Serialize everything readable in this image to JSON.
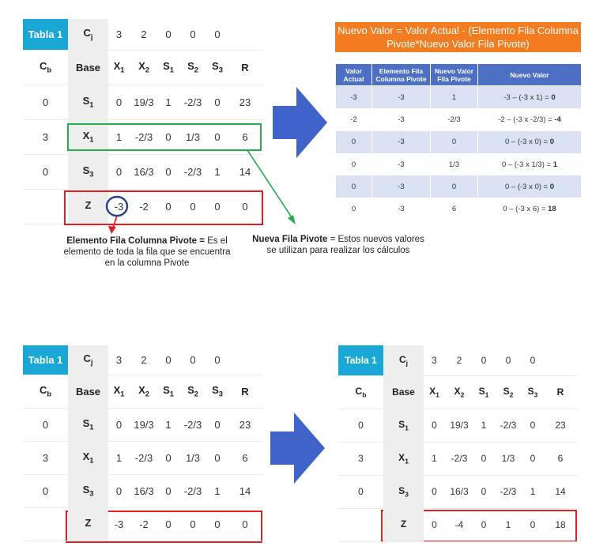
{
  "colors": {
    "corner": "#1aa7d6",
    "highlight_red": "#e02020",
    "highlight_green": "#22b04b",
    "arrow_blue": "#3f63c8",
    "title_orange": "#f47c20",
    "circle_blue": "#2a3c8c"
  },
  "tables": {
    "t1": {
      "corner": "Tabla 1",
      "cj_label": "C",
      "cj_sub": "j",
      "cj_values": [
        "3",
        "2",
        "0",
        "0",
        "0",
        ""
      ],
      "cb_label": "C",
      "cb_sub": "b",
      "base_label": "Base",
      "r_label": "R",
      "vars": [
        {
          "n": "X",
          "s": "1"
        },
        {
          "n": "X",
          "s": "2"
        },
        {
          "n": "S",
          "s": "1"
        },
        {
          "n": "S",
          "s": "2"
        },
        {
          "n": "S",
          "s": "3"
        }
      ],
      "rows": [
        {
          "cb": "0",
          "base": "S",
          "base_sub": "1",
          "v": [
            "0",
            "19/3",
            "1",
            "-2/3",
            "0",
            "23"
          ]
        },
        {
          "cb": "3",
          "base": "X",
          "base_sub": "1",
          "v": [
            "1",
            "-2/3",
            "0",
            "1/3",
            "0",
            "6"
          ]
        },
        {
          "cb": "0",
          "base": "S",
          "base_sub": "3",
          "v": [
            "0",
            "16/3",
            "0",
            "-2/3",
            "1",
            "14"
          ]
        },
        {
          "cb": "",
          "base": "Z",
          "base_sub": "",
          "v": [
            "-3",
            "-2",
            "0",
            "0",
            "0",
            "0"
          ]
        }
      ]
    },
    "t3": {
      "rows": [
        {
          "cb": "0",
          "base": "S",
          "base_sub": "1",
          "v": [
            "0",
            "19/3",
            "1",
            "-2/3",
            "0",
            "23"
          ]
        },
        {
          "cb": "3",
          "base": "X",
          "base_sub": "1",
          "v": [
            "1",
            "-2/3",
            "0",
            "1/3",
            "0",
            "6"
          ]
        },
        {
          "cb": "0",
          "base": "S",
          "base_sub": "3",
          "v": [
            "0",
            "16/3",
            "0",
            "-2/3",
            "1",
            "14"
          ]
        },
        {
          "cb": "",
          "base": "Z",
          "base_sub": "",
          "v": [
            "-3",
            "-2",
            "0",
            "0",
            "0",
            "0"
          ]
        }
      ]
    },
    "t4": {
      "rows": [
        {
          "cb": "0",
          "base": "S",
          "base_sub": "1",
          "v": [
            "0",
            "19/3",
            "1",
            "-2/3",
            "0",
            "23"
          ]
        },
        {
          "cb": "3",
          "base": "X",
          "base_sub": "1",
          "v": [
            "1",
            "-2/3",
            "0",
            "1/3",
            "0",
            "6"
          ]
        },
        {
          "cb": "0",
          "base": "S",
          "base_sub": "3",
          "v": [
            "0",
            "16/3",
            "0",
            "-2/3",
            "1",
            "14"
          ]
        },
        {
          "cb": "",
          "base": "Z",
          "base_sub": "",
          "v": [
            "0",
            "-4",
            "0",
            "1",
            "0",
            "18"
          ]
        }
      ]
    }
  },
  "formula": {
    "title": "Nuevo Valor = Valor Actual - (Elemento Fila Columna Pivote*Nuevo Valor Fila Pivote)",
    "headers": [
      "Valor Actual",
      "Elemento Fila Columna Pivote",
      "Nuevo Valor Fila Pivote",
      "Nuevo Valor"
    ],
    "rows": [
      {
        "actual": "-3",
        "elem": "-3",
        "nuevo_fila": "1",
        "expr": "-3 – (-3 x 1) = ",
        "result": "0"
      },
      {
        "actual": "-2",
        "elem": "-3",
        "nuevo_fila": "-2/3",
        "expr": "-2 – (-3 x -2/3) = ",
        "result": "-4"
      },
      {
        "actual": "0",
        "elem": "-3",
        "nuevo_fila": "0",
        "expr": "0 – (-3 x 0) = ",
        "result": "0"
      },
      {
        "actual": "0",
        "elem": "-3",
        "nuevo_fila": "1/3",
        "expr": "0 – (-3 x 1/3) = ",
        "result": "1"
      },
      {
        "actual": "0",
        "elem": "-3",
        "nuevo_fila": "0",
        "expr": "0 – (-3 x 0) = ",
        "result": "0"
      },
      {
        "actual": "0",
        "elem": "-3",
        "nuevo_fila": "6",
        "expr": "0 – (-3 x 6) = ",
        "result": "18"
      }
    ]
  },
  "notes": {
    "pivot_bold": "Elemento Fila Columna Pivote =",
    "pivot_l1": " Es el",
    "pivot_l2": "elemento de toda la fila que se encuentra",
    "pivot_l3": "en la columna Pivote",
    "newrow_bold": "Nueva Fila Pivote",
    "newrow_l1": " = Estos nuevos valores",
    "newrow_l2": "se utilizan para realizar los cálculos"
  }
}
